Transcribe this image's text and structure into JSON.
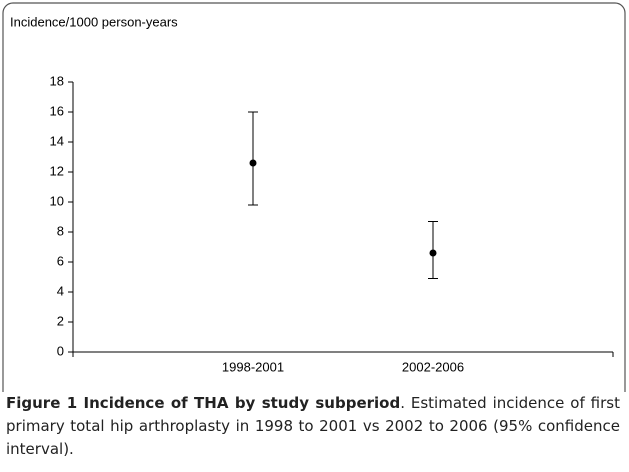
{
  "chart_data": {
    "type": "errorbar",
    "y_label": "Incidence/1000 person-years",
    "categories": [
      "1998-2001",
      "2002-2006"
    ],
    "values": [
      12.6,
      6.6
    ],
    "ci_low": [
      9.8,
      4.9
    ],
    "ci_high": [
      16.0,
      8.7
    ],
    "color": "#000000",
    "ylim": [
      0,
      18
    ],
    "yticks": [
      0,
      2,
      4,
      6,
      8,
      10,
      12,
      14,
      16,
      18
    ],
    "grid": false
  },
  "caption": {
    "label": "Figure 1 Incidence of THA by study subperiod",
    "text": ". Estimated incidence of first primary total hip arthroplasty in 1998 to 2001 vs 2002 to 2006 (95% confidence interval)."
  }
}
